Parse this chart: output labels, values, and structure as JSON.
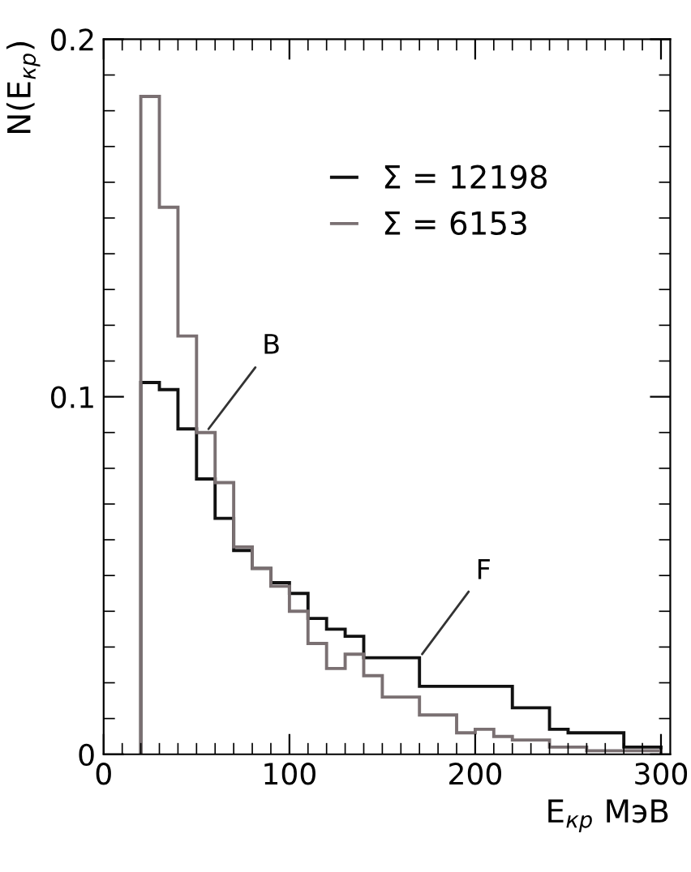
{
  "chart_data": {
    "type": "histogram",
    "xlabel": "E$_{кр}$ МэВ",
    "ylabel": "N(E$_{кр}$)",
    "bins": [
      20,
      30,
      40,
      50,
      60,
      70,
      80,
      90,
      100,
      110,
      120,
      130,
      140,
      150,
      160,
      170,
      180,
      190,
      200,
      210,
      220,
      230,
      240,
      250,
      260,
      270,
      280,
      290,
      300
    ],
    "series": [
      {
        "name": "Σ = 12198",
        "color": "#111111",
        "values": [
          0.104,
          0.102,
          0.091,
          0.077,
          0.066,
          0.057,
          0.052,
          0.048,
          0.045,
          0.038,
          0.035,
          0.033,
          0.027,
          0.027,
          0.027,
          0.019,
          0.019,
          0.019,
          0.019,
          0.019,
          0.013,
          0.013,
          0.007,
          0.006,
          0.006,
          0.006,
          0.002,
          0.002
        ]
      },
      {
        "name": "Σ = 6153",
        "color": "#7a7072",
        "values": [
          0.184,
          0.153,
          0.117,
          0.09,
          0.076,
          0.058,
          0.052,
          0.047,
          0.04,
          0.031,
          0.024,
          0.028,
          0.022,
          0.016,
          0.016,
          0.011,
          0.011,
          0.006,
          0.007,
          0.005,
          0.004,
          0.004,
          0.002,
          0.002,
          0.001,
          0.001,
          0.001,
          0.001
        ]
      }
    ],
    "annotations": [
      {
        "text": "B",
        "x": 55,
        "y": 0.09
      },
      {
        "text": "F",
        "x": 170,
        "y": 0.027
      }
    ],
    "xlim": [
      0,
      305
    ],
    "ylim": [
      0,
      0.2
    ],
    "xticks": [
      0,
      100,
      200,
      300
    ],
    "yticks": [
      0,
      0.1,
      0.2
    ],
    "grid": false,
    "legend": "top right"
  }
}
